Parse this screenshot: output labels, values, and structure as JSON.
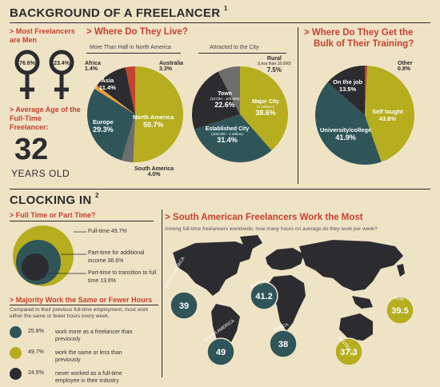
{
  "header": {
    "title": "BACKGROUND OF A FREELANCER",
    "sup": "1"
  },
  "men": {
    "title": "> Most Freelancers are Men",
    "male_pct": "76.6%",
    "female_pct": "23.4%"
  },
  "age": {
    "title": "> Average Age of the Full-Time Freelancer:",
    "value": "32",
    "unit": "YEARS OLD"
  },
  "live": {
    "title": "> Where Do They Live?",
    "sub1": "More Than Half in North America",
    "sub2": "Attracted to the City"
  },
  "training": {
    "title1": "> Where Do They Get the",
    "title2": "Bulk of Their Training?"
  },
  "clocking": {
    "title": "CLOCKING IN",
    "sup": "2"
  },
  "fulltime": {
    "title": "> Full Time or Part Time?"
  },
  "majority": {
    "title": "> Majority Work the Same or Fewer Hours",
    "note": "Compared to their previous full-time employment, most work either the same or fewer hours every week."
  },
  "southam": {
    "title": "> South American Freelancers Work the Most",
    "note": "Among full-time freelancers worldwide, how many hours on average do they work per week?"
  },
  "colors": {
    "teal": "#2f5559",
    "olive": "#b6ad1f",
    "dark": "#2c2c30",
    "orange": "#e9a03a",
    "red": "#c4422e",
    "gray": "#6e6e6e",
    "bg": "#efe3c6"
  },
  "chart_data": [
    {
      "type": "pie",
      "name": "region",
      "slices": [
        {
          "label": "North America",
          "value": 50.7,
          "color": "#b6ad1f",
          "value_label": "50.7%"
        },
        {
          "label": "South America",
          "value": 4.0,
          "color": "#6e6e6e",
          "value_label": "4.0%"
        },
        {
          "label": "Europe",
          "value": 29.3,
          "color": "#2f5559",
          "value_label": "29.3%"
        },
        {
          "label": "Africa",
          "value": 1.4,
          "color": "#e9a03a",
          "value_label": "1.4%"
        },
        {
          "label": "Asia",
          "value": 11.4,
          "color": "#2c2c30",
          "value_label": "11.4%"
        },
        {
          "label": "Australia",
          "value": 3.3,
          "color": "#c4422e",
          "value_label": "3.3%"
        }
      ]
    },
    {
      "type": "pie",
      "name": "city",
      "slices": [
        {
          "label": "Major City",
          "sublabel": "(1 million+)",
          "value": 38.6,
          "color": "#b6ad1f",
          "value_label": "38.6%"
        },
        {
          "label": "Established City",
          "sublabel": "(100,000 - 1 million)",
          "value": 31.4,
          "color": "#2f5559",
          "value_label": "31.4%"
        },
        {
          "label": "Town",
          "sublabel": "(10,000 - 100,000)",
          "value": 22.6,
          "color": "#2c2c30",
          "value_label": "22.6%"
        },
        {
          "label": "Rural",
          "sublabel": "(Less than 10,000)",
          "value": 7.5,
          "color": "#6e6e6e",
          "value_label": "7.5%"
        }
      ]
    },
    {
      "type": "pie",
      "name": "training",
      "slices": [
        {
          "label": "Other",
          "value": 0.8,
          "color": "#c4422e",
          "value_label": "0.8%"
        },
        {
          "label": "Self taught",
          "value": 43.8,
          "color": "#b6ad1f",
          "value_label": "43.8%"
        },
        {
          "label": "University/college",
          "value": 41.9,
          "color": "#2f5559",
          "value_label": "41.9%"
        },
        {
          "label": "On the job",
          "value": 13.5,
          "color": "#2c2c30",
          "value_label": "13.5%"
        }
      ]
    },
    {
      "type": "area",
      "name": "fulltime-parttime",
      "items": [
        {
          "label": "Full-time 49.7%",
          "value": 49.7,
          "color": "#b6ad1f"
        },
        {
          "label": "Part-time for additional income 36.6%",
          "value": 36.6,
          "color": "#2f5559"
        },
        {
          "label": "Part-time to transition to full time 13.6%",
          "value": 13.6,
          "color": "#2c2c30"
        }
      ]
    },
    {
      "type": "table",
      "name": "hours-change",
      "rows": [
        {
          "pct": "25.8%",
          "text": "work more as a freelancer than previously",
          "color": "#2f5559"
        },
        {
          "pct": "49.7%",
          "text": "work the same or less than previously",
          "color": "#b6ad1f"
        },
        {
          "pct": "24.5%",
          "text": "never worked as a full-time employee in their industry",
          "color": "#2c2c30"
        }
      ]
    },
    {
      "type": "scatter",
      "name": "hours-by-region",
      "points": [
        {
          "region": "NORTH AMERICA",
          "hours": "39",
          "color": "#2f5559"
        },
        {
          "region": "EUROPE",
          "hours": "41.2",
          "color": "#2f5559"
        },
        {
          "region": "ASIA",
          "hours": "39.5",
          "color": "#b6ad1f"
        },
        {
          "region": "SOUTH AMERICA",
          "hours": "49",
          "color": "#2f5559"
        },
        {
          "region": "AFRICA",
          "hours": "38",
          "color": "#2f5559"
        },
        {
          "region": "AUSTRALIA",
          "hours": "37.3",
          "color": "#b6ad1f"
        }
      ]
    }
  ]
}
